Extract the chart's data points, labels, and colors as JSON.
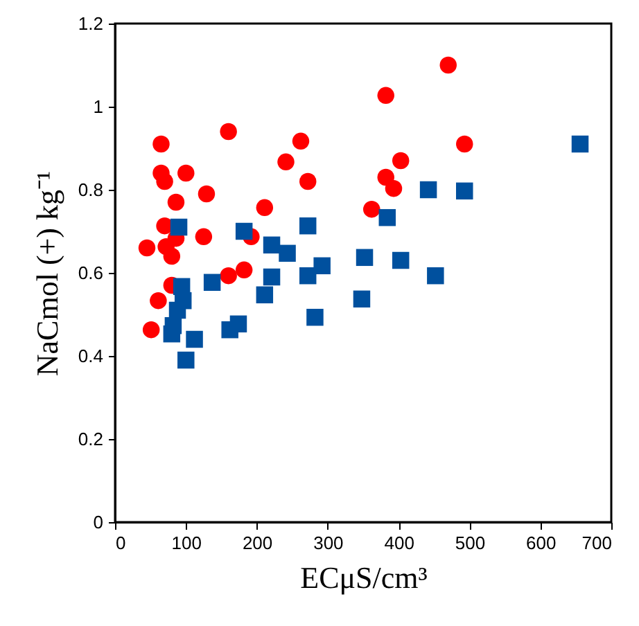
{
  "chart_data": {
    "type": "scatter",
    "xlabel": "ECμS/cm³",
    "ylabel": "NaCmol (+) kg⁻¹",
    "xlim": [
      0,
      700
    ],
    "xticks": [
      0,
      100,
      200,
      300,
      400,
      500,
      600,
      700
    ],
    "ylim": [
      0,
      1.2
    ],
    "yticks": [
      0,
      0.2,
      0.4,
      0.6,
      0.8,
      1,
      1.2
    ],
    "series": [
      {
        "color": "#ff0000",
        "marker": "circle",
        "x": [
          65,
          65,
          70,
          100,
          160,
          129,
          86,
          211,
          70,
          45,
          72,
          86,
          80,
          125,
          192,
          160,
          182,
          80,
          61,
          51,
          241,
          382,
          262,
          272,
          403,
          382,
          393,
          493,
          362,
          470
        ],
        "values": [
          0.91,
          0.84,
          0.82,
          0.84,
          0.94,
          0.79,
          0.77,
          0.757,
          0.713,
          0.66,
          0.663,
          0.683,
          0.64,
          0.687,
          0.687,
          0.593,
          0.607,
          0.57,
          0.533,
          0.463,
          0.867,
          1.027,
          0.917,
          0.82,
          0.87,
          0.83,
          0.803,
          0.91,
          0.753,
          1.1
        ]
      },
      {
        "color": "#00509e",
        "marker": "square",
        "x": [
          90,
          182,
          94,
          96,
          88,
          82,
          80,
          112,
          100,
          137,
          162,
          174,
          221,
          221,
          211,
          272,
          243,
          292,
          272,
          348,
          282,
          352,
          403,
          452,
          384,
          442,
          493,
          656
        ],
        "values": [
          0.71,
          0.7,
          0.567,
          0.533,
          0.51,
          0.473,
          0.453,
          0.44,
          0.39,
          0.577,
          0.463,
          0.477,
          0.667,
          0.59,
          0.547,
          0.713,
          0.647,
          0.617,
          0.593,
          0.537,
          0.493,
          0.637,
          0.63,
          0.593,
          0.733,
          0.8,
          0.797,
          0.91
        ]
      }
    ]
  }
}
